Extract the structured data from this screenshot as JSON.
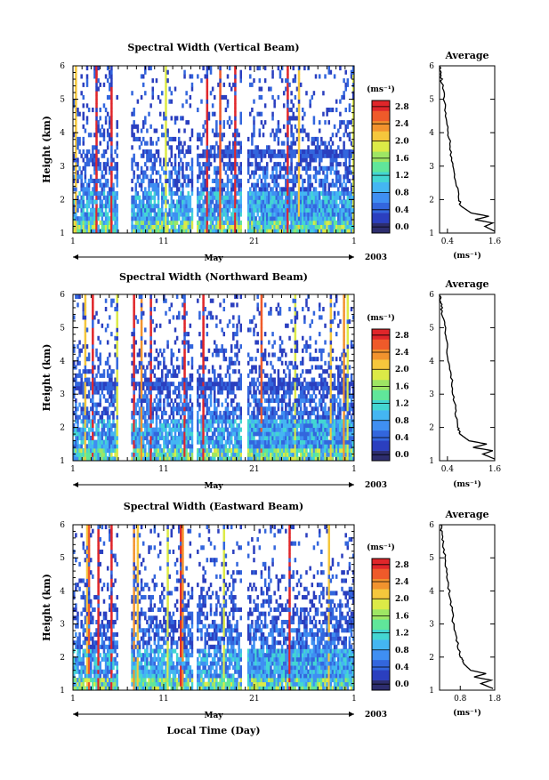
{
  "figure": {
    "year_label": "2003",
    "x_axis_title": "Local Time (Day)",
    "month_label": "May",
    "colorbar_unit": "(ms⁻¹)",
    "avg_xlabel": "(ms⁻¹)"
  },
  "colors": {
    "scale": [
      "#2d2d6e",
      "#2b3fbf",
      "#3366dd",
      "#3f8ff2",
      "#44b6f2",
      "#43d6d2",
      "#60e69a",
      "#9ee664",
      "#dcea47",
      "#f5c73c",
      "#f2932e",
      "#ef5a2a",
      "#e0262a"
    ]
  },
  "chart_data": [
    {
      "type": "heatmap",
      "title": "Spectral Width (Vertical Beam)",
      "ylabel": "Height (km)",
      "ylim": [
        1,
        6
      ],
      "yticks": [
        "1",
        "2",
        "3",
        "4",
        "5",
        "6"
      ],
      "xticks": [
        "1",
        "11",
        "21",
        "1"
      ],
      "colorbar_ticks": [
        "0.0",
        "0.4",
        "0.8",
        "1.2",
        "1.6",
        "2.0",
        "2.4",
        "2.8"
      ],
      "gaps_days": [
        [
          6.0,
          7.5
        ],
        [
          14.2,
          14.6
        ],
        [
          19.6,
          20.3
        ]
      ],
      "average": {
        "title": "Average",
        "xticks": [
          "0.4",
          "1.6"
        ],
        "xlim": [
          0.2,
          1.6
        ],
        "ylim": [
          1,
          6
        ],
        "height_km": [
          1.05,
          1.2,
          1.3,
          1.4,
          1.5,
          1.6,
          1.8,
          2.0,
          2.5,
          3.0,
          3.5,
          4.0,
          4.5,
          5.0,
          5.5,
          5.8,
          6.0
        ],
        "width": [
          1.6,
          1.35,
          1.55,
          1.1,
          1.45,
          1.0,
          0.75,
          0.7,
          0.62,
          0.55,
          0.48,
          0.42,
          0.36,
          0.32,
          0.26,
          0.22,
          0.2
        ]
      }
    },
    {
      "type": "heatmap",
      "title": "Spectral Width (Northward Beam)",
      "ylabel": "Height (km)",
      "ylim": [
        1,
        6
      ],
      "yticks": [
        "1",
        "2",
        "3",
        "4",
        "5",
        "6"
      ],
      "xticks": [
        "1",
        "11",
        "21",
        "1"
      ],
      "colorbar_ticks": [
        "0.0",
        "0.4",
        "0.8",
        "1.2",
        "1.6",
        "2.0",
        "2.4",
        "2.8"
      ],
      "gaps_days": [
        [
          6.0,
          7.5
        ],
        [
          14.2,
          14.6
        ],
        [
          19.6,
          20.3
        ]
      ],
      "average": {
        "title": "Average",
        "xticks": [
          "0.4",
          "1.6"
        ],
        "xlim": [
          0.2,
          1.6
        ],
        "ylim": [
          1,
          6
        ],
        "height_km": [
          1.05,
          1.2,
          1.3,
          1.4,
          1.5,
          1.6,
          1.8,
          2.0,
          2.5,
          3.0,
          3.5,
          4.0,
          4.5,
          5.0,
          5.5,
          5.8,
          6.0
        ],
        "width": [
          1.6,
          1.3,
          1.55,
          1.05,
          1.4,
          0.95,
          0.72,
          0.68,
          0.6,
          0.55,
          0.5,
          0.44,
          0.38,
          0.33,
          0.27,
          0.22,
          0.2
        ]
      }
    },
    {
      "type": "heatmap",
      "title": "Spectral Width (Eastward Beam)",
      "ylabel": "Height (km)",
      "ylim": [
        1,
        6
      ],
      "yticks": [
        "1",
        "2",
        "3",
        "4",
        "5",
        "6"
      ],
      "xticks": [
        "1",
        "11",
        "21",
        "1"
      ],
      "colorbar_ticks": [
        "0.0",
        "0.4",
        "0.8",
        "1.2",
        "1.6",
        "2.0",
        "2.4",
        "2.8"
      ],
      "gaps_days": [
        [
          6.0,
          7.5
        ],
        [
          14.2,
          14.6
        ],
        [
          19.6,
          20.3
        ]
      ],
      "average": {
        "title": "Average",
        "xticks": [
          "0.8",
          "1.8"
        ],
        "xlim": [
          0.2,
          1.8
        ],
        "ylim": [
          1,
          6
        ],
        "height_km": [
          1.05,
          1.2,
          1.3,
          1.4,
          1.5,
          1.6,
          1.8,
          2.0,
          2.5,
          3.0,
          3.5,
          4.0,
          4.5,
          5.0,
          5.5,
          5.8,
          6.0
        ],
        "width": [
          1.75,
          1.4,
          1.7,
          1.2,
          1.55,
          1.1,
          0.9,
          0.82,
          0.7,
          0.6,
          0.55,
          0.48,
          0.42,
          0.36,
          0.3,
          0.26,
          0.24
        ]
      }
    }
  ]
}
